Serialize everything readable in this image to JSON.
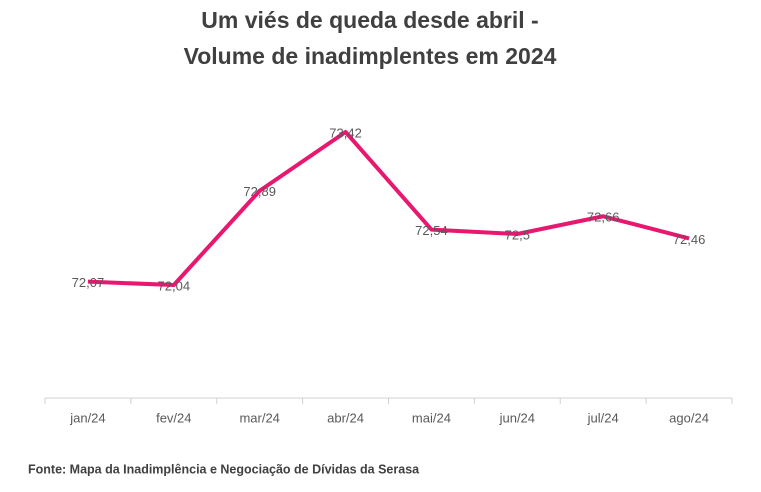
{
  "chart_data": {
    "type": "line",
    "title": [
      "Um viés de queda desde abril -",
      "Volume de inadimplentes em 2024"
    ],
    "categories": [
      "jan/24",
      "fev/24",
      "mar/24",
      "abr/24",
      "mai/24",
      "jun/24",
      "jul/24",
      "ago/24"
    ],
    "series": [
      {
        "color": "#e8176f",
        "values": [
          72.07,
          72.04,
          72.89,
          73.42,
          72.54,
          72.5,
          72.66,
          72.46
        ],
        "value_labels": [
          "72,07",
          "72,04",
          "72,89",
          "73,42",
          "72,54",
          "72,5",
          "72,66",
          "72,46"
        ]
      }
    ],
    "source": "Fonte: Mapa da Inadimplência e Negociação de Dívidas da Serasa"
  }
}
